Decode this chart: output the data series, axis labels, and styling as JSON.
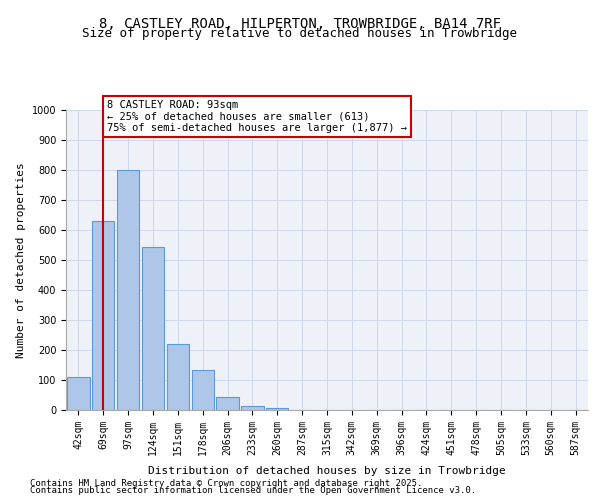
{
  "title_line1": "8, CASTLEY ROAD, HILPERTON, TROWBRIDGE, BA14 7RF",
  "title_line2": "Size of property relative to detached houses in Trowbridge",
  "xlabel": "Distribution of detached houses by size in Trowbridge",
  "ylabel": "Number of detached properties",
  "categories": [
    "42sqm",
    "69sqm",
    "97sqm",
    "124sqm",
    "151sqm",
    "178sqm",
    "206sqm",
    "233sqm",
    "260sqm",
    "287sqm",
    "315sqm",
    "342sqm",
    "369sqm",
    "396sqm",
    "424sqm",
    "451sqm",
    "478sqm",
    "505sqm",
    "533sqm",
    "560sqm",
    "587sqm"
  ],
  "values": [
    110,
    630,
    800,
    545,
    220,
    135,
    45,
    13,
    8,
    0,
    0,
    0,
    0,
    0,
    0,
    0,
    0,
    0,
    0,
    0,
    0
  ],
  "bar_color": "#aec6e8",
  "bar_edge_color": "#5b9bd5",
  "bar_edge_width": 0.8,
  "grid_color": "#d0d8e8",
  "background_color": "#eef2f8",
  "red_line_x": 1.0,
  "red_line_color": "#cc0000",
  "annotation_text": "8 CASTLEY ROAD: 93sqm\n← 25% of detached houses are smaller (613)\n75% of semi-detached houses are larger (1,877) →",
  "annotation_box_color": "#ffffff",
  "annotation_box_edge_color": "#cc0000",
  "ylim": [
    0,
    1000
  ],
  "yticks": [
    0,
    100,
    200,
    300,
    400,
    500,
    600,
    700,
    800,
    900,
    1000
  ],
  "footnote_line1": "Contains HM Land Registry data © Crown copyright and database right 2025.",
  "footnote_line2": "Contains public sector information licensed under the Open Government Licence v3.0.",
  "title_fontsize": 10,
  "subtitle_fontsize": 9,
  "axis_label_fontsize": 8,
  "tick_fontsize": 7,
  "annotation_fontsize": 7.5,
  "footnote_fontsize": 6.5
}
